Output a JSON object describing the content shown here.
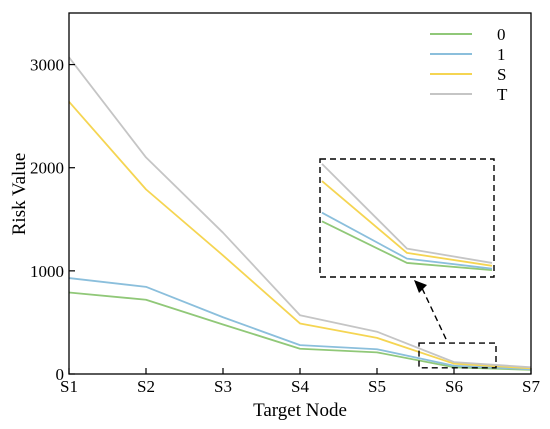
{
  "chart_data": {
    "type": "line",
    "title": "",
    "xlabel": "Target Node",
    "ylabel": "Risk Value",
    "categories": [
      "S1",
      "S2",
      "S3",
      "S4",
      "S5",
      "S6",
      "S7"
    ],
    "ylim": [
      0,
      3500
    ],
    "yticks": [
      0,
      1000,
      2000,
      3000
    ],
    "grid": false,
    "legend_position": "top-right",
    "series": [
      {
        "name": "0",
        "color": "#90c878",
        "values": [
          790,
          720,
          480,
          245,
          210,
          65,
          40
        ]
      },
      {
        "name": "1",
        "color": "#8bbfdc",
        "values": [
          930,
          845,
          550,
          280,
          240,
          80,
          45
        ]
      },
      {
        "name": "S",
        "color": "#f5d552",
        "values": [
          2640,
          1790,
          1150,
          490,
          350,
          100,
          55
        ]
      },
      {
        "name": "T",
        "color": "#c5c5c5",
        "values": [
          3070,
          2100,
          1370,
          570,
          410,
          115,
          65
        ]
      }
    ],
    "inset": {
      "from_category": "S6",
      "arrow_color": "#000000"
    }
  }
}
